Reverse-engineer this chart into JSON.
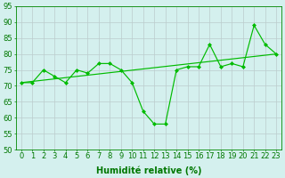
{
  "x": [
    0,
    1,
    2,
    3,
    4,
    5,
    6,
    7,
    8,
    9,
    10,
    11,
    12,
    13,
    14,
    15,
    16,
    17,
    18,
    19,
    20,
    21,
    22,
    23
  ],
  "y_main": [
    71,
    71,
    75,
    73,
    71,
    75,
    74,
    77,
    77,
    75,
    71,
    62,
    58,
    58,
    75,
    76,
    76,
    83,
    76,
    77,
    76,
    89,
    83,
    80
  ],
  "trend_x": [
    0,
    23
  ],
  "trend_y": [
    71,
    80
  ],
  "line_color": "#00bb00",
  "marker_color": "#00bb00",
  "bg_color": "#d4f0ee",
  "grid_color": "#bbcccc",
  "xlabel": "Humidité relative (%)",
  "ylim": [
    50,
    95
  ],
  "xlim": [
    -0.5,
    23.5
  ],
  "yticks": [
    50,
    55,
    60,
    65,
    70,
    75,
    80,
    85,
    90,
    95
  ],
  "xticks": [
    0,
    1,
    2,
    3,
    4,
    5,
    6,
    7,
    8,
    9,
    10,
    11,
    12,
    13,
    14,
    15,
    16,
    17,
    18,
    19,
    20,
    21,
    22,
    23
  ],
  "xlabel_fontsize": 7,
  "tick_fontsize": 6,
  "label_color": "#007700"
}
